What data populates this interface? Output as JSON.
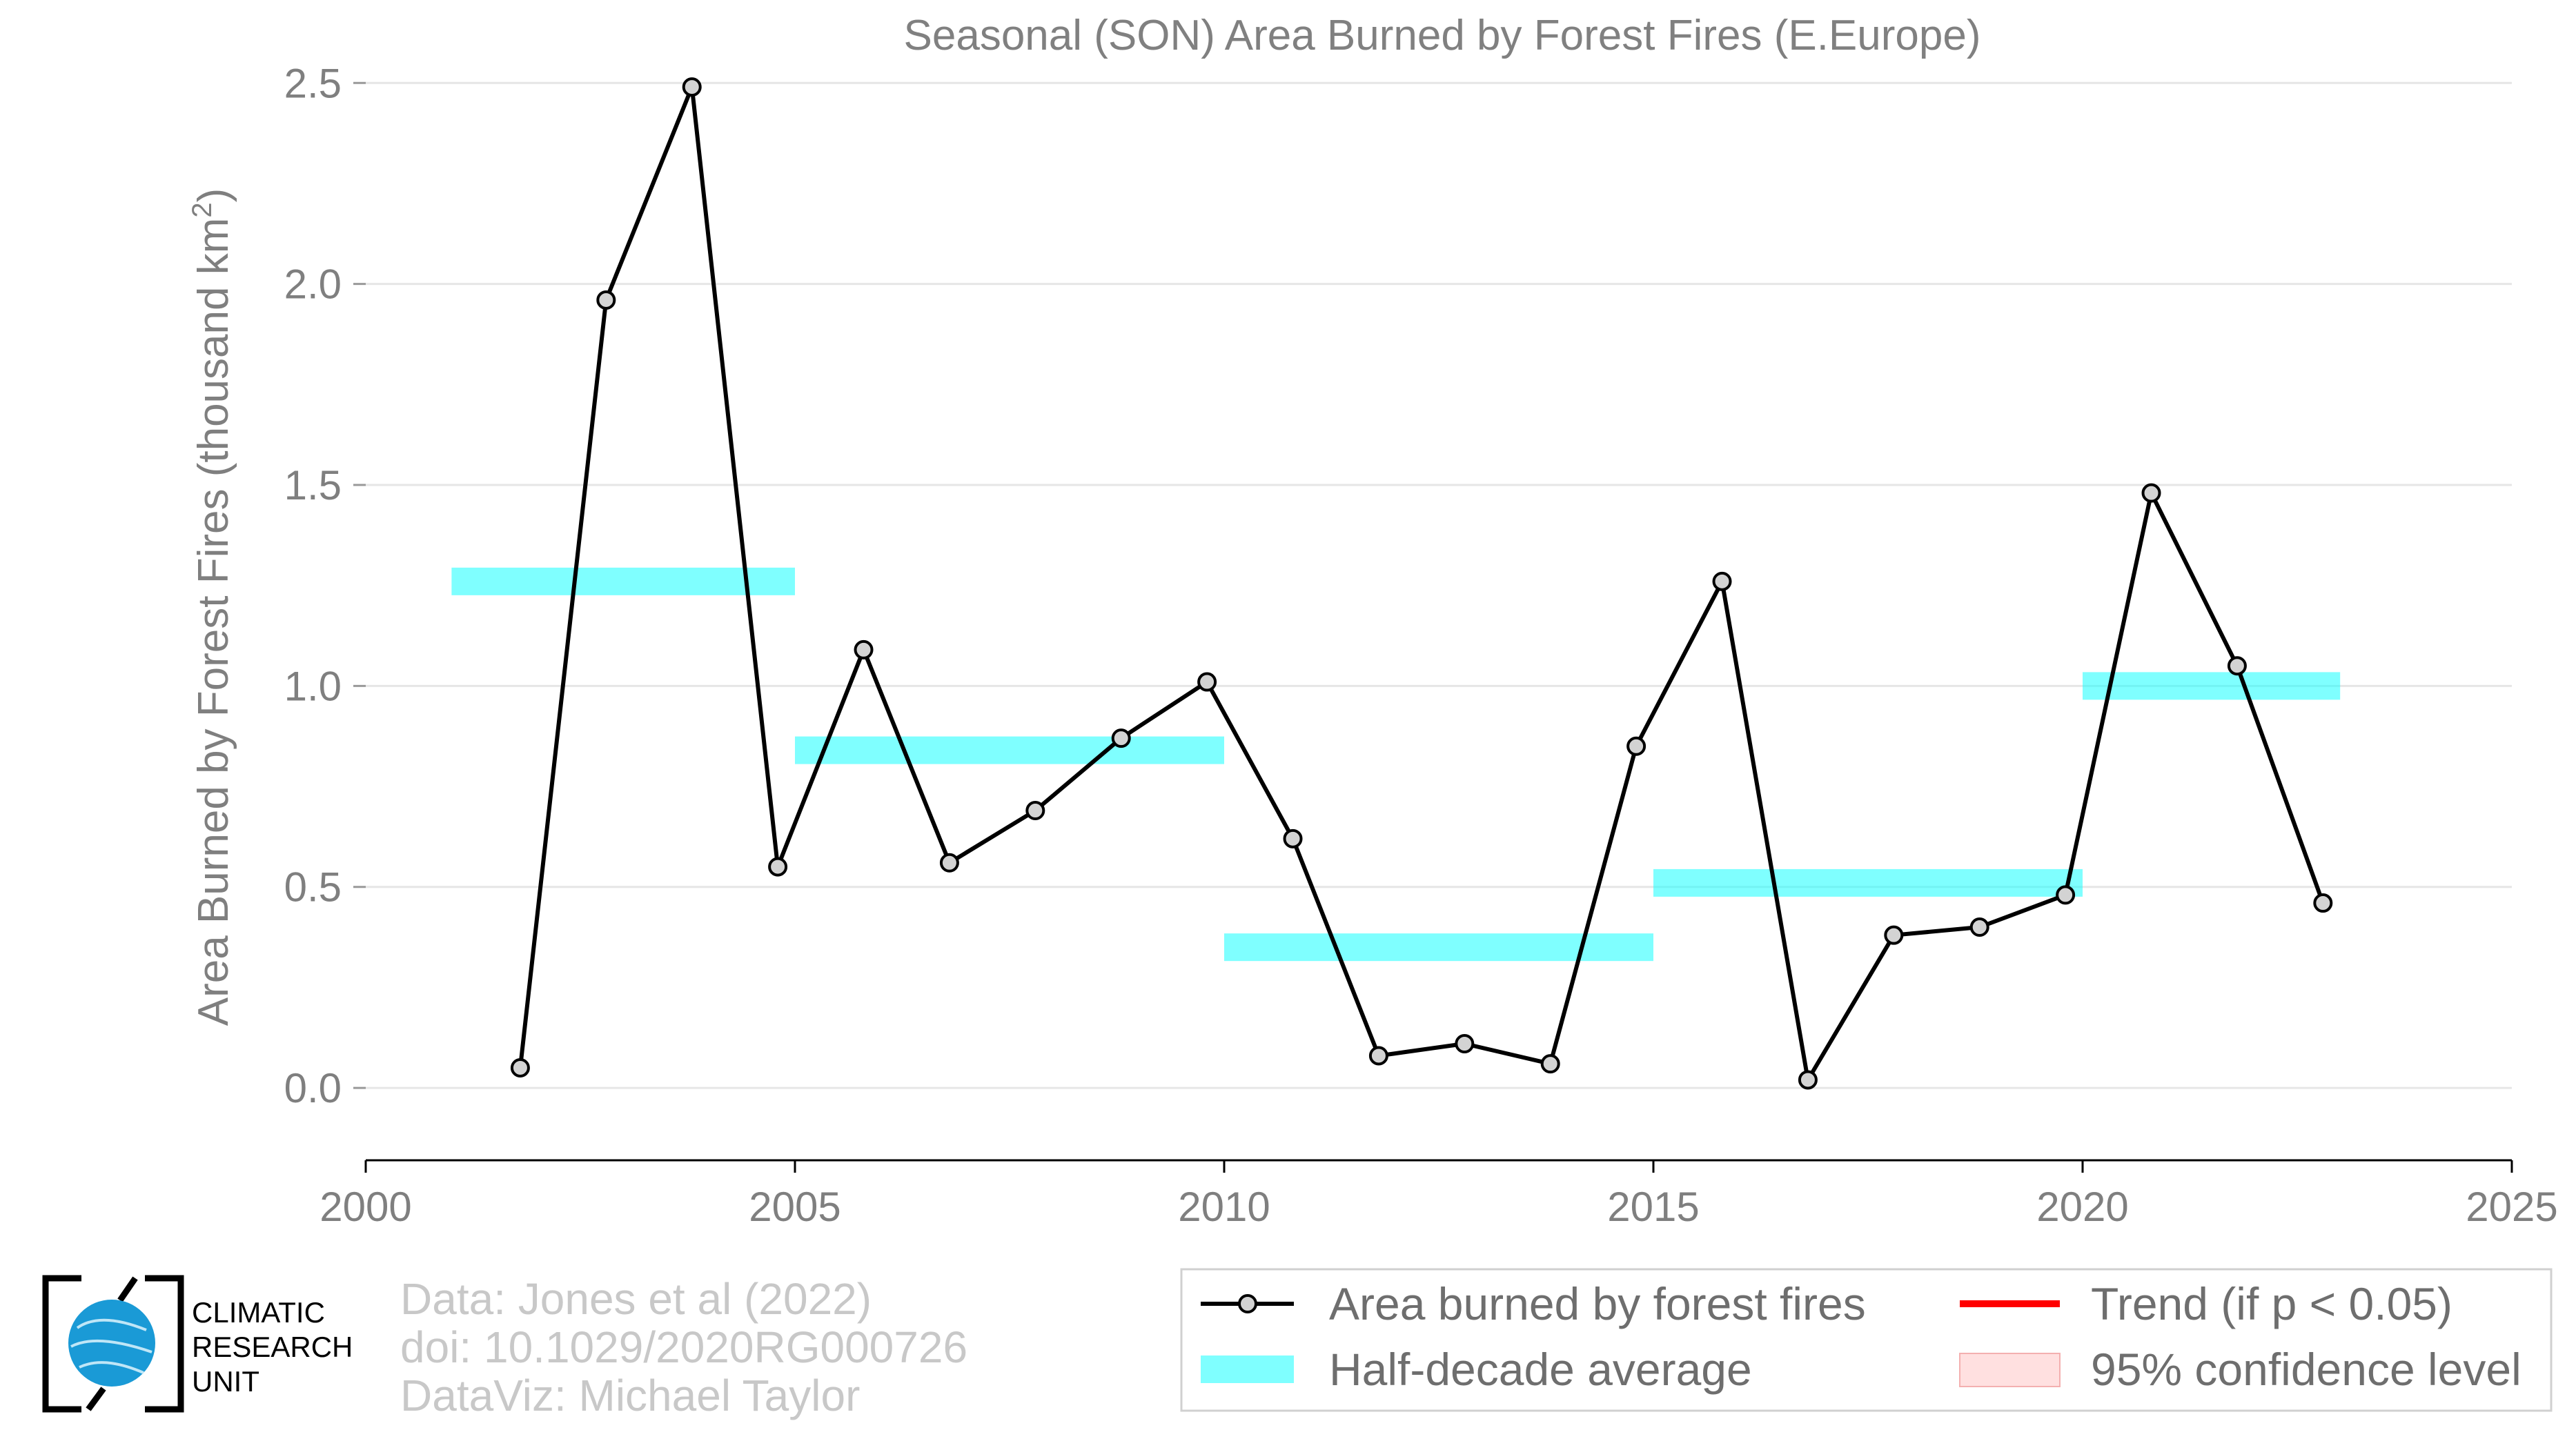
{
  "chart_data": {
    "type": "line",
    "title": "Seasonal (SON) Area Burned by Forest Fires (E.Europe)",
    "ylabel_main": "Area Burned by Forest Fires (thousand km",
    "ylabel_sup": "2",
    "ylabel_close": ")",
    "xlabel": "",
    "xlim": [
      2000,
      2025
    ],
    "ylim": [
      -0.18,
      2.6
    ],
    "x_ticks": [
      2000,
      2005,
      2010,
      2015,
      2020,
      2025
    ],
    "y_ticks": [
      0.0,
      0.5,
      1.0,
      1.5,
      2.0,
      2.5
    ],
    "y_tick_labels": [
      "0.0",
      "0.5",
      "1.0",
      "1.5",
      "2.0",
      "2.5"
    ],
    "grid": "horizontal",
    "series": [
      {
        "name": "Area burned by forest fires",
        "color": "#000000",
        "marker_fill": "#d3d3d3",
        "x": [
          2001.8,
          2002.8,
          2003.8,
          2004.8,
          2005.8,
          2006.8,
          2007.8,
          2008.8,
          2009.8,
          2010.8,
          2011.8,
          2012.8,
          2013.8,
          2014.8,
          2015.8,
          2016.8,
          2017.8,
          2018.8,
          2019.8,
          2020.8,
          2021.8,
          2022.8
        ],
        "y": [
          0.05,
          1.96,
          2.49,
          0.55,
          1.09,
          0.56,
          0.69,
          0.87,
          1.01,
          0.62,
          0.08,
          0.11,
          0.06,
          0.85,
          1.26,
          0.02,
          0.38,
          0.4,
          0.48,
          1.48,
          1.05,
          0.46
        ]
      }
    ],
    "half_decade_averages": {
      "name": "Half-decade average",
      "color": "#00ffff",
      "segments": [
        {
          "x0": 2001,
          "x1": 2005,
          "y": 1.26
        },
        {
          "x0": 2005,
          "x1": 2010,
          "y": 0.84
        },
        {
          "x0": 2010,
          "x1": 2015,
          "y": 0.35
        },
        {
          "x0": 2015,
          "x1": 2020,
          "y": 0.51
        },
        {
          "x0": 2020,
          "x1": 2023,
          "y": 1.0
        }
      ]
    },
    "legend": {
      "position": "bottom-right",
      "items": [
        {
          "label": "Area burned by forest fires",
          "kind": "line-marker",
          "color": "#000000"
        },
        {
          "label": "Trend (if p < 0.05)",
          "kind": "line",
          "color": "#ff0000"
        },
        {
          "label": "Half-decade average",
          "kind": "band",
          "color": "#00ffff"
        },
        {
          "label": "95% confidence level",
          "kind": "band",
          "color": "#ffcccc"
        }
      ]
    }
  },
  "credits": [
    "Data: Jones et al (2022)",
    "doi: 10.1029/2020RG000726",
    "DataViz: Michael Taylor"
  ],
  "logo": {
    "lines": [
      "CLIMATIC",
      "RESEARCH",
      "UNIT"
    ],
    "globe_color": "#1a9ad6"
  }
}
